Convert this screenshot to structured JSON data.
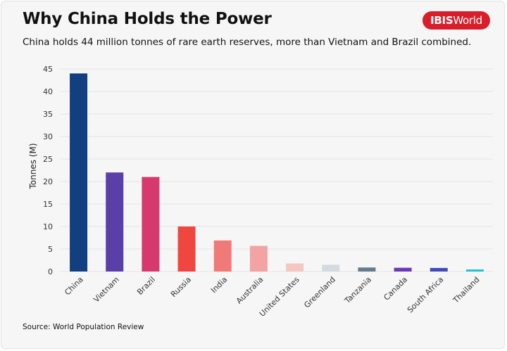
{
  "header": {
    "title": "Why China Holds the Power",
    "subtitle": "China holds 44 million tonnes of rare earth reserves, more than Vietnam and Brazil combined."
  },
  "logo": {
    "bold": "IBIS",
    "regular": "World",
    "color": "#d81e2a"
  },
  "footer": {
    "source": "Source: World Population Review"
  },
  "chart_data": {
    "type": "bar",
    "title": "Why China Holds the Power",
    "subtitle": "China holds 44 million tonnes of rare earth reserves, more than Vietnam and Brazil combined.",
    "ylabel": "Tonnes (M)",
    "xlabel": "",
    "ylim": [
      0,
      45
    ],
    "yticks": [
      0,
      5,
      10,
      15,
      20,
      25,
      30,
      35,
      40,
      45
    ],
    "grid": true,
    "categories": [
      "China",
      "Vietnam",
      "Brazil",
      "Russia",
      "India",
      "Australia",
      "United States",
      "Greenland",
      "Tanzania",
      "Canada",
      "South Africa",
      "Thailand"
    ],
    "values": [
      44,
      22,
      21,
      10,
      6.9,
      5.7,
      1.8,
      1.5,
      0.89,
      0.83,
      0.79,
      0.45
    ],
    "colors": [
      "#123f7f",
      "#5a3fa6",
      "#d6396d",
      "#f04640",
      "#ef7a78",
      "#f2a3a3",
      "#f6c6c0",
      "#d3dbe1",
      "#647c89",
      "#6a38b8",
      "#3e4db8",
      "#1cbfd7"
    ]
  }
}
